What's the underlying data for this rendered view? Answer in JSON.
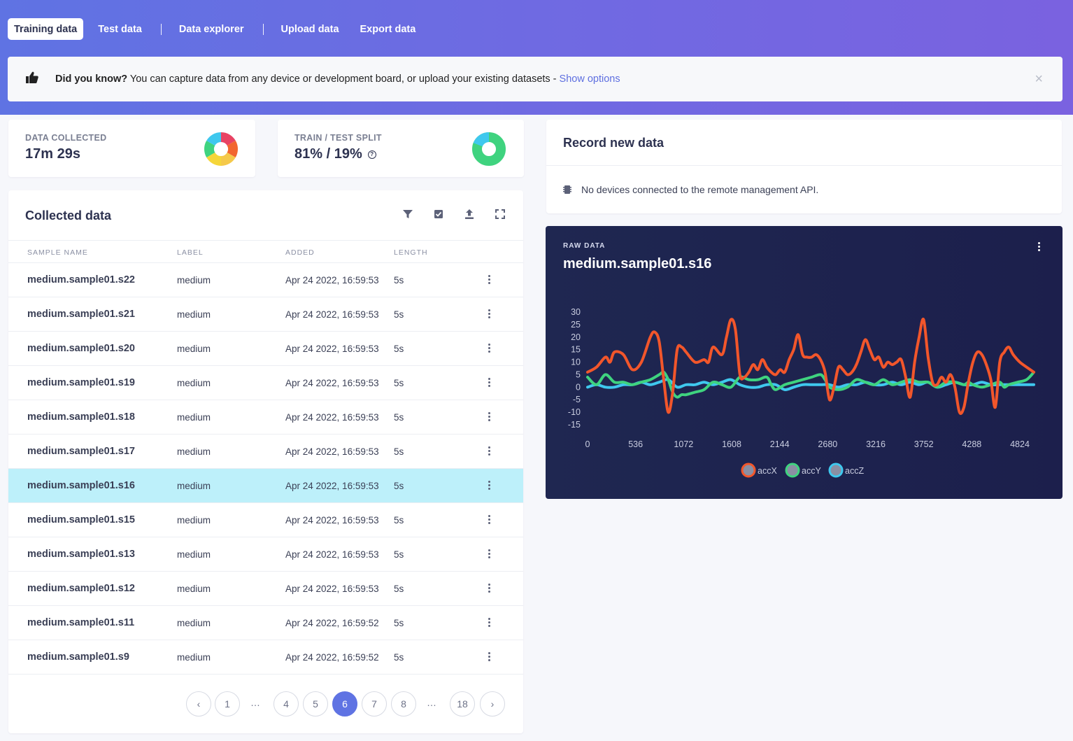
{
  "tabs": [
    {
      "label": "Training data",
      "active": true
    },
    {
      "label": "Test data"
    },
    {
      "label": "Data explorer"
    },
    {
      "label": "Upload data"
    },
    {
      "label": "Export data"
    }
  ],
  "tip": {
    "icon": "thumbs-up-icon",
    "bold": "Did you know?",
    "text": " You can capture data from any device or development board, or upload your existing datasets - ",
    "link": "Show options",
    "close": "×"
  },
  "stats": {
    "collected_label": "DATA COLLECTED",
    "collected_value": "17m 29s",
    "split_label": "TRAIN / TEST SPLIT",
    "split_value": "81% / 19%",
    "split_help": "?"
  },
  "record": {
    "title": "Record new data",
    "status": "No devices connected to the remote management API."
  },
  "collected": {
    "title": "Collected data",
    "columns": [
      "SAMPLE NAME",
      "LABEL",
      "ADDED",
      "LENGTH"
    ],
    "rows": [
      {
        "name": "medium.sample01.s22",
        "label": "medium",
        "added": "Apr 24 2022, 16:59:53",
        "length": "5s"
      },
      {
        "name": "medium.sample01.s21",
        "label": "medium",
        "added": "Apr 24 2022, 16:59:53",
        "length": "5s"
      },
      {
        "name": "medium.sample01.s20",
        "label": "medium",
        "added": "Apr 24 2022, 16:59:53",
        "length": "5s"
      },
      {
        "name": "medium.sample01.s19",
        "label": "medium",
        "added": "Apr 24 2022, 16:59:53",
        "length": "5s"
      },
      {
        "name": "medium.sample01.s18",
        "label": "medium",
        "added": "Apr 24 2022, 16:59:53",
        "length": "5s"
      },
      {
        "name": "medium.sample01.s17",
        "label": "medium",
        "added": "Apr 24 2022, 16:59:53",
        "length": "5s"
      },
      {
        "name": "medium.sample01.s16",
        "label": "medium",
        "added": "Apr 24 2022, 16:59:53",
        "length": "5s",
        "selected": true
      },
      {
        "name": "medium.sample01.s15",
        "label": "medium",
        "added": "Apr 24 2022, 16:59:53",
        "length": "5s"
      },
      {
        "name": "medium.sample01.s13",
        "label": "medium",
        "added": "Apr 24 2022, 16:59:53",
        "length": "5s"
      },
      {
        "name": "medium.sample01.s12",
        "label": "medium",
        "added": "Apr 24 2022, 16:59:53",
        "length": "5s"
      },
      {
        "name": "medium.sample01.s11",
        "label": "medium",
        "added": "Apr 24 2022, 16:59:52",
        "length": "5s"
      },
      {
        "name": "medium.sample01.s9",
        "label": "medium",
        "added": "Apr 24 2022, 16:59:52",
        "length": "5s"
      }
    ],
    "pagination": {
      "prev": "‹",
      "next": "›",
      "items": [
        "1",
        "…",
        "4",
        "5",
        "6",
        "7",
        "8",
        "…",
        "18"
      ],
      "current": "6"
    }
  },
  "raw": {
    "label": "RAW DATA",
    "title": "medium.sample01.s16"
  },
  "colors": {
    "accent": "#5f73e3",
    "selected_row": "#bdf0fa",
    "accX": "#f2562b",
    "accY": "#3fd37f",
    "accZ": "#3fc8ee"
  },
  "chart_data": {
    "type": "line",
    "title": "",
    "xlabel": "",
    "ylabel": "",
    "xlim": [
      0,
      5000
    ],
    "ylim": [
      -15,
      30
    ],
    "x_ticks": [
      0,
      536,
      1072,
      1608,
      2144,
      2680,
      3216,
      3752,
      4288,
      4824
    ],
    "y_ticks": [
      30,
      25,
      20,
      15,
      10,
      5,
      0,
      -5,
      -10,
      -15
    ],
    "grid": false,
    "legend": "bottom-center",
    "series": [
      {
        "name": "accX",
        "color": "#f2562b",
        "x": [
          0,
          100,
          200,
          250,
          300,
          400,
          500,
          600,
          700,
          750,
          800,
          850,
          900,
          950,
          1000,
          1050,
          1100,
          1200,
          1300,
          1350,
          1400,
          1500,
          1550,
          1600,
          1650,
          1700,
          1750,
          1800,
          1850,
          1900,
          1950,
          2000,
          2050,
          2100,
          2150,
          2200,
          2250,
          2300,
          2350,
          2400,
          2450,
          2500,
          2550,
          2600,
          2650,
          2700,
          2750,
          2800,
          2850,
          2900,
          2950,
          3000,
          3050,
          3100,
          3150,
          3200,
          3250,
          3300,
          3350,
          3400,
          3450,
          3500,
          3550,
          3600,
          3650,
          3700,
          3750,
          3800,
          3850,
          3900,
          3950,
          4000,
          4050,
          4100,
          4150,
          4200,
          4250,
          4300,
          4350,
          4400,
          4450,
          4500,
          4550,
          4600,
          4650,
          4700,
          4750,
          4824,
          4900,
          4980
        ],
        "y": [
          6,
          8,
          12,
          10,
          14,
          13,
          7,
          10,
          20,
          22,
          18,
          3,
          -10,
          -2,
          15,
          16,
          14,
          10,
          11,
          10,
          16,
          13,
          20,
          27,
          23,
          5,
          4,
          6,
          9,
          7,
          11,
          8,
          6,
          5,
          7,
          6,
          11,
          15,
          21,
          13,
          12,
          12,
          13,
          11,
          6,
          -5,
          0,
          8,
          7,
          5,
          6,
          9,
          14,
          19,
          15,
          11,
          12,
          8,
          10,
          9,
          10,
          11,
          4,
          -4,
          10,
          20,
          27,
          12,
          2,
          1,
          4,
          2,
          5,
          0,
          -10,
          -8,
          2,
          10,
          14,
          13,
          9,
          3,
          -8,
          10,
          14,
          16,
          13,
          10,
          8,
          6
        ]
      },
      {
        "name": "accY",
        "color": "#3fd37f",
        "x": [
          0,
          100,
          200,
          300,
          400,
          500,
          600,
          700,
          800,
          850,
          900,
          950,
          1000,
          1050,
          1100,
          1200,
          1300,
          1400,
          1500,
          1600,
          1700,
          1800,
          1900,
          2000,
          2050,
          2100,
          2200,
          2300,
          2400,
          2500,
          2600,
          2650,
          2700,
          2800,
          2900,
          3000,
          3100,
          3200,
          3300,
          3400,
          3500,
          3600,
          3700,
          3800,
          3900,
          4000,
          4100,
          4200,
          4250,
          4300,
          4400,
          4500,
          4600,
          4650,
          4700,
          4800,
          4900,
          4980
        ],
        "y": [
          4,
          1,
          5,
          2,
          2,
          1,
          2,
          3,
          5,
          6,
          3,
          -2,
          -4,
          -3,
          -3,
          -2,
          -1,
          2,
          1,
          0,
          4,
          3,
          3,
          4,
          1,
          -1,
          1,
          2,
          3,
          4,
          5,
          3,
          0,
          -1,
          0,
          3,
          2,
          1,
          3,
          1,
          2,
          3,
          2,
          2,
          0,
          2,
          2,
          1,
          2,
          1,
          0,
          1,
          2,
          0,
          1,
          2,
          3,
          6
        ]
      },
      {
        "name": "accZ",
        "color": "#3fc8ee",
        "x": [
          0,
          100,
          200,
          300,
          400,
          500,
          600,
          700,
          800,
          900,
          1000,
          1100,
          1200,
          1300,
          1400,
          1500,
          1600,
          1700,
          1800,
          1900,
          2000,
          2100,
          2200,
          2300,
          2400,
          2500,
          2600,
          2700,
          2800,
          2900,
          3000,
          3100,
          3200,
          3300,
          3400,
          3500,
          3600,
          3700,
          3800,
          3900,
          4000,
          4100,
          4200,
          4300,
          4400,
          4500,
          4600,
          4700,
          4800,
          4900,
          4980
        ],
        "y": [
          0,
          1,
          0,
          0,
          1,
          1,
          2,
          1,
          2,
          3,
          0,
          1,
          1,
          2,
          1,
          2,
          3,
          1,
          0,
          0,
          1,
          1,
          -1,
          0,
          1,
          1,
          1,
          1,
          0,
          1,
          1,
          2,
          1,
          1,
          2,
          1,
          2,
          1,
          2,
          0,
          1,
          2,
          1,
          1,
          2,
          1,
          1,
          1,
          1,
          1,
          1
        ]
      }
    ]
  }
}
